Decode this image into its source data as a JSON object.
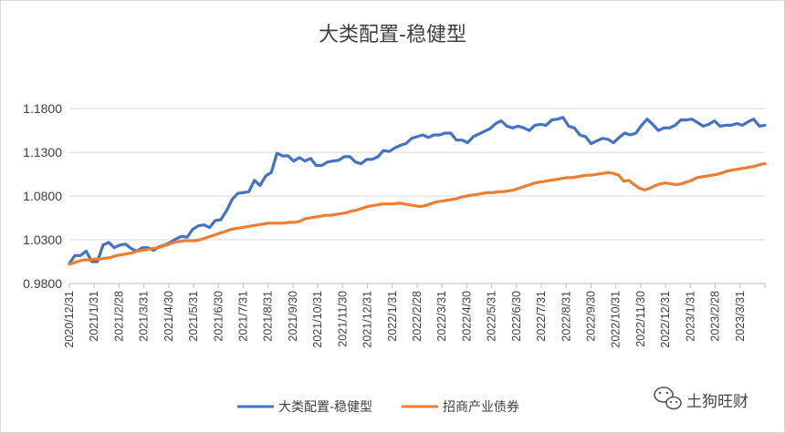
{
  "chart_data": {
    "type": "line",
    "title": "大类配置-稳健型",
    "xlabel": "",
    "ylabel": "",
    "ylim": [
      0.98,
      1.2
    ],
    "yticks": [
      "0.9800",
      "1.0300",
      "1.0800",
      "1.1300",
      "1.1800"
    ],
    "ytick_values": [
      0.98,
      1.03,
      1.08,
      1.13,
      1.18
    ],
    "grid": "horizontal",
    "legend_position": "bottom",
    "x_tick_labels": [
      "2020/12/31",
      "2021/1/31",
      "2021/2/28",
      "2021/3/31",
      "2021/4/30",
      "2021/5/31",
      "2021/6/30",
      "2021/7/31",
      "2021/8/31",
      "2021/9/30",
      "2021/10/31",
      "2021/11/30",
      "2021/12/31",
      "2022/1/31",
      "2022/2/28",
      "2022/3/31",
      "2022/4/30",
      "2022/5/31",
      "2022/6/30",
      "2022/7/31",
      "2022/8/31",
      "2022/9/30",
      "2022/10/31",
      "2022/11/30",
      "2022/12/31",
      "2023/1/31",
      "2023/2/28",
      "2023/3/31"
    ],
    "series": [
      {
        "name": "大类配置-稳健型",
        "color": "#4472C4",
        "values": [
          1.003,
          1.012,
          1.012,
          1.017,
          1.005,
          1.005,
          1.024,
          1.027,
          1.021,
          1.024,
          1.025,
          1.02,
          1.017,
          1.021,
          1.021,
          1.018,
          1.022,
          1.024,
          1.027,
          1.031,
          1.034,
          1.033,
          1.042,
          1.046,
          1.047,
          1.044,
          1.052,
          1.053,
          1.063,
          1.076,
          1.083,
          1.084,
          1.085,
          1.098,
          1.092,
          1.103,
          1.107,
          1.129,
          1.126,
          1.126,
          1.12,
          1.124,
          1.12,
          1.123,
          1.115,
          1.115,
          1.119,
          1.12,
          1.121,
          1.125,
          1.125,
          1.119,
          1.117,
          1.122,
          1.122,
          1.125,
          1.132,
          1.131,
          1.135,
          1.138,
          1.14,
          1.146,
          1.148,
          1.15,
          1.147,
          1.15,
          1.15,
          1.152,
          1.152,
          1.144,
          1.144,
          1.141,
          1.148,
          1.151,
          1.154,
          1.157,
          1.163,
          1.166,
          1.16,
          1.158,
          1.16,
          1.158,
          1.155,
          1.161,
          1.162,
          1.161,
          1.167,
          1.168,
          1.17,
          1.16,
          1.158,
          1.15,
          1.148,
          1.14,
          1.143,
          1.146,
          1.145,
          1.141,
          1.147,
          1.152,
          1.15,
          1.152,
          1.161,
          1.168,
          1.162,
          1.155,
          1.158,
          1.158,
          1.161,
          1.167,
          1.167,
          1.168,
          1.164,
          1.16,
          1.162,
          1.166,
          1.16,
          1.161,
          1.161,
          1.163,
          1.161,
          1.165,
          1.168,
          1.16,
          1.161
        ]
      },
      {
        "name": "招商产业债券",
        "color": "#ED7D31",
        "values": [
          1.002,
          1.004,
          1.006,
          1.007,
          1.007,
          1.008,
          1.008,
          1.009,
          1.01,
          1.012,
          1.013,
          1.014,
          1.015,
          1.017,
          1.018,
          1.019,
          1.02,
          1.021,
          1.023,
          1.025,
          1.027,
          1.028,
          1.029,
          1.029,
          1.029,
          1.03,
          1.032,
          1.034,
          1.036,
          1.038,
          1.04,
          1.042,
          1.043,
          1.044,
          1.045,
          1.046,
          1.047,
          1.048,
          1.049,
          1.049,
          1.049,
          1.049,
          1.05,
          1.05,
          1.051,
          1.054,
          1.055,
          1.056,
          1.057,
          1.058,
          1.058,
          1.059,
          1.06,
          1.061,
          1.063,
          1.064,
          1.066,
          1.068,
          1.069,
          1.07,
          1.071,
          1.071,
          1.071,
          1.072,
          1.071,
          1.07,
          1.069,
          1.068,
          1.069,
          1.071,
          1.073,
          1.074,
          1.075,
          1.076,
          1.077,
          1.079,
          1.08,
          1.081,
          1.082,
          1.083,
          1.084,
          1.084,
          1.085,
          1.085,
          1.086,
          1.087,
          1.089,
          1.091,
          1.093,
          1.095,
          1.096,
          1.097,
          1.098,
          1.099,
          1.1,
          1.101,
          1.101,
          1.102,
          1.103,
          1.104,
          1.104,
          1.105,
          1.106,
          1.107,
          1.106,
          1.104,
          1.097,
          1.098,
          1.093,
          1.089,
          1.087,
          1.089,
          1.092,
          1.094,
          1.095,
          1.094,
          1.093,
          1.094,
          1.096,
          1.098,
          1.101,
          1.102,
          1.103,
          1.104,
          1.105,
          1.107,
          1.109,
          1.11,
          1.111,
          1.112,
          1.113,
          1.114,
          1.116,
          1.117
        ]
      }
    ]
  },
  "watermark": {
    "icon": "wechat-icon",
    "text": "土狗旺财"
  }
}
